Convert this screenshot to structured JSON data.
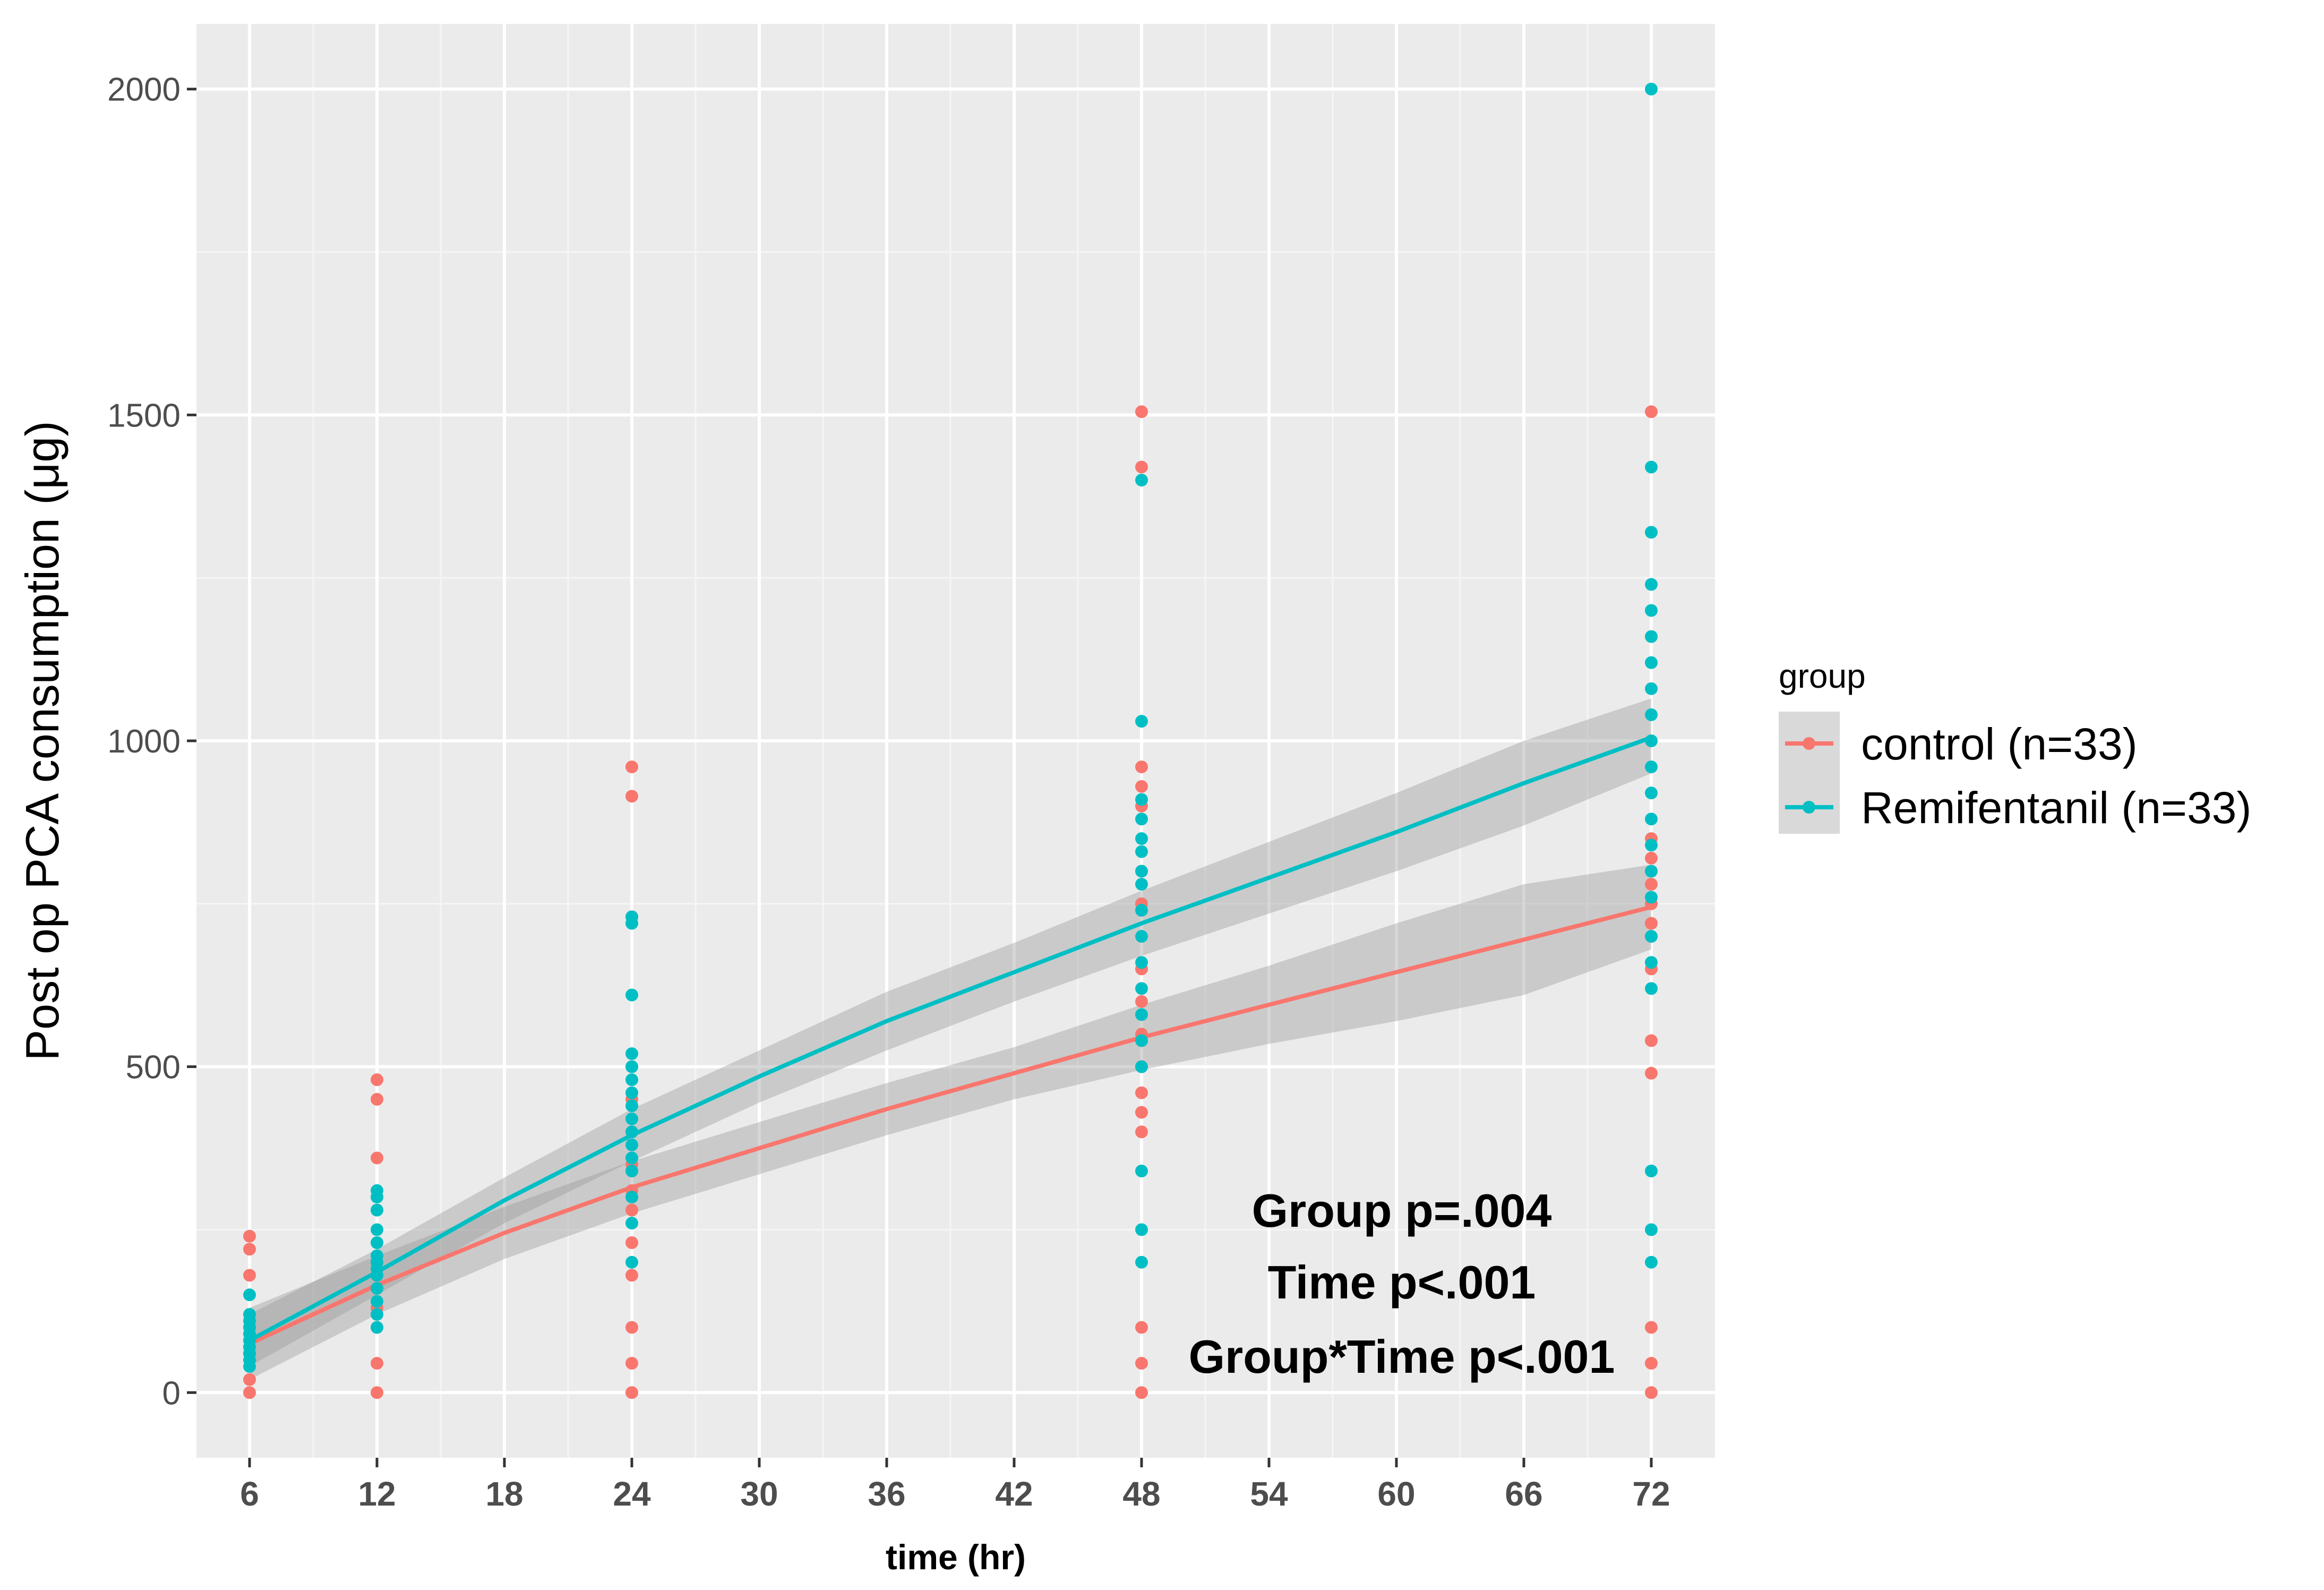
{
  "chart_data": {
    "type": "scatter",
    "title": "",
    "xlabel": "time (hr)",
    "ylabel": "Post op PCA consumption (μg)",
    "xlim": [
      3.5,
      75
    ],
    "ylim": [
      -100,
      2100
    ],
    "x_ticks": [
      6,
      12,
      18,
      24,
      30,
      36,
      42,
      48,
      54,
      60,
      66,
      72
    ],
    "y_ticks": [
      0,
      500,
      1000,
      1500,
      2000
    ],
    "grid": true,
    "legend_title": "group",
    "legend_position": "right",
    "series": [
      {
        "name": "control (n=33)",
        "color": "#F8766D",
        "points": [
          [
            6,
            0
          ],
          [
            6,
            20
          ],
          [
            6,
            60
          ],
          [
            6,
            80
          ],
          [
            6,
            100
          ],
          [
            6,
            180
          ],
          [
            6,
            220
          ],
          [
            6,
            240
          ],
          [
            12,
            0
          ],
          [
            12,
            45
          ],
          [
            12,
            100
          ],
          [
            12,
            130
          ],
          [
            12,
            160
          ],
          [
            12,
            180
          ],
          [
            12,
            200
          ],
          [
            12,
            280
          ],
          [
            12,
            360
          ],
          [
            12,
            450
          ],
          [
            12,
            480
          ],
          [
            24,
            0
          ],
          [
            24,
            45
          ],
          [
            24,
            100
          ],
          [
            24,
            180
          ],
          [
            24,
            230
          ],
          [
            24,
            280
          ],
          [
            24,
            310
          ],
          [
            24,
            350
          ],
          [
            24,
            400
          ],
          [
            24,
            450
          ],
          [
            24,
            500
          ],
          [
            24,
            730
          ],
          [
            24,
            915
          ],
          [
            24,
            960
          ],
          [
            48,
            0
          ],
          [
            48,
            45
          ],
          [
            48,
            100
          ],
          [
            48,
            400
          ],
          [
            48,
            430
          ],
          [
            48,
            460
          ],
          [
            48,
            500
          ],
          [
            48,
            550
          ],
          [
            48,
            600
          ],
          [
            48,
            650
          ],
          [
            48,
            750
          ],
          [
            48,
            800
          ],
          [
            48,
            900
          ],
          [
            48,
            930
          ],
          [
            48,
            960
          ],
          [
            48,
            1420
          ],
          [
            48,
            1505
          ],
          [
            72,
            0
          ],
          [
            72,
            45
          ],
          [
            72,
            100
          ],
          [
            72,
            490
          ],
          [
            72,
            540
          ],
          [
            72,
            650
          ],
          [
            72,
            700
          ],
          [
            72,
            720
          ],
          [
            72,
            750
          ],
          [
            72,
            780
          ],
          [
            72,
            800
          ],
          [
            72,
            820
          ],
          [
            72,
            850
          ],
          [
            72,
            1505
          ]
        ],
        "fit": [
          [
            6,
            75
          ],
          [
            12,
            165
          ],
          [
            18,
            245
          ],
          [
            24,
            315
          ],
          [
            30,
            375
          ],
          [
            36,
            435
          ],
          [
            42,
            490
          ],
          [
            48,
            545
          ],
          [
            54,
            595
          ],
          [
            60,
            645
          ],
          [
            66,
            695
          ],
          [
            72,
            745
          ]
        ],
        "fit_lower": [
          [
            6,
            20
          ],
          [
            12,
            120
          ],
          [
            18,
            205
          ],
          [
            24,
            275
          ],
          [
            30,
            335
          ],
          [
            36,
            395
          ],
          [
            42,
            450
          ],
          [
            48,
            495
          ],
          [
            54,
            535
          ],
          [
            60,
            570
          ],
          [
            66,
            610
          ],
          [
            72,
            680
          ]
        ],
        "fit_upper": [
          [
            6,
            130
          ],
          [
            12,
            210
          ],
          [
            18,
            285
          ],
          [
            24,
            355
          ],
          [
            30,
            415
          ],
          [
            36,
            475
          ],
          [
            42,
            530
          ],
          [
            48,
            595
          ],
          [
            54,
            655
          ],
          [
            60,
            720
          ],
          [
            66,
            780
          ],
          [
            72,
            810
          ]
        ]
      },
      {
        "name": "Remifentanil (n=33)",
        "color": "#00BFC4",
        "points": [
          [
            6,
            40
          ],
          [
            6,
            50
          ],
          [
            6,
            60
          ],
          [
            6,
            70
          ],
          [
            6,
            80
          ],
          [
            6,
            90
          ],
          [
            6,
            100
          ],
          [
            6,
            110
          ],
          [
            6,
            120
          ],
          [
            6,
            150
          ],
          [
            12,
            100
          ],
          [
            12,
            120
          ],
          [
            12,
            140
          ],
          [
            12,
            160
          ],
          [
            12,
            180
          ],
          [
            12,
            190
          ],
          [
            12,
            200
          ],
          [
            12,
            210
          ],
          [
            12,
            230
          ],
          [
            12,
            250
          ],
          [
            12,
            280
          ],
          [
            12,
            300
          ],
          [
            12,
            310
          ],
          [
            24,
            200
          ],
          [
            24,
            260
          ],
          [
            24,
            300
          ],
          [
            24,
            340
          ],
          [
            24,
            360
          ],
          [
            24,
            380
          ],
          [
            24,
            400
          ],
          [
            24,
            420
          ],
          [
            24,
            440
          ],
          [
            24,
            460
          ],
          [
            24,
            480
          ],
          [
            24,
            500
          ],
          [
            24,
            520
          ],
          [
            24,
            610
          ],
          [
            24,
            720
          ],
          [
            24,
            730
          ],
          [
            48,
            200
          ],
          [
            48,
            250
          ],
          [
            48,
            340
          ],
          [
            48,
            500
          ],
          [
            48,
            540
          ],
          [
            48,
            580
          ],
          [
            48,
            620
          ],
          [
            48,
            660
          ],
          [
            48,
            700
          ],
          [
            48,
            740
          ],
          [
            48,
            780
          ],
          [
            48,
            800
          ],
          [
            48,
            830
          ],
          [
            48,
            850
          ],
          [
            48,
            880
          ],
          [
            48,
            910
          ],
          [
            48,
            1030
          ],
          [
            48,
            1400
          ],
          [
            72,
            200
          ],
          [
            72,
            250
          ],
          [
            72,
            340
          ],
          [
            72,
            620
          ],
          [
            72,
            660
          ],
          [
            72,
            700
          ],
          [
            72,
            760
          ],
          [
            72,
            800
          ],
          [
            72,
            840
          ],
          [
            72,
            880
          ],
          [
            72,
            920
          ],
          [
            72,
            960
          ],
          [
            72,
            1000
          ],
          [
            72,
            1040
          ],
          [
            72,
            1080
          ],
          [
            72,
            1120
          ],
          [
            72,
            1160
          ],
          [
            72,
            1200
          ],
          [
            72,
            1240
          ],
          [
            72,
            1320
          ],
          [
            72,
            1420
          ],
          [
            72,
            2000
          ]
        ],
        "fit": [
          [
            6,
            80
          ],
          [
            12,
            185
          ],
          [
            18,
            295
          ],
          [
            24,
            395
          ],
          [
            30,
            485
          ],
          [
            36,
            570
          ],
          [
            42,
            645
          ],
          [
            48,
            720
          ],
          [
            54,
            790
          ],
          [
            60,
            860
          ],
          [
            66,
            935
          ],
          [
            72,
            1005
          ]
        ],
        "fit_lower": [
          [
            6,
            40
          ],
          [
            12,
            150
          ],
          [
            18,
            260
          ],
          [
            24,
            355
          ],
          [
            30,
            445
          ],
          [
            36,
            525
          ],
          [
            42,
            600
          ],
          [
            48,
            670
          ],
          [
            54,
            735
          ],
          [
            60,
            800
          ],
          [
            66,
            870
          ],
          [
            72,
            950
          ]
        ],
        "fit_upper": [
          [
            6,
            120
          ],
          [
            12,
            220
          ],
          [
            18,
            330
          ],
          [
            24,
            435
          ],
          [
            30,
            525
          ],
          [
            36,
            615
          ],
          [
            42,
            690
          ],
          [
            48,
            770
          ],
          [
            54,
            845
          ],
          [
            60,
            920
          ],
          [
            66,
            1000
          ],
          [
            72,
            1065
          ]
        ]
      }
    ],
    "annotations": [
      "Group p=.004",
      "Time p<.001",
      "Group*Time p<.001"
    ]
  }
}
